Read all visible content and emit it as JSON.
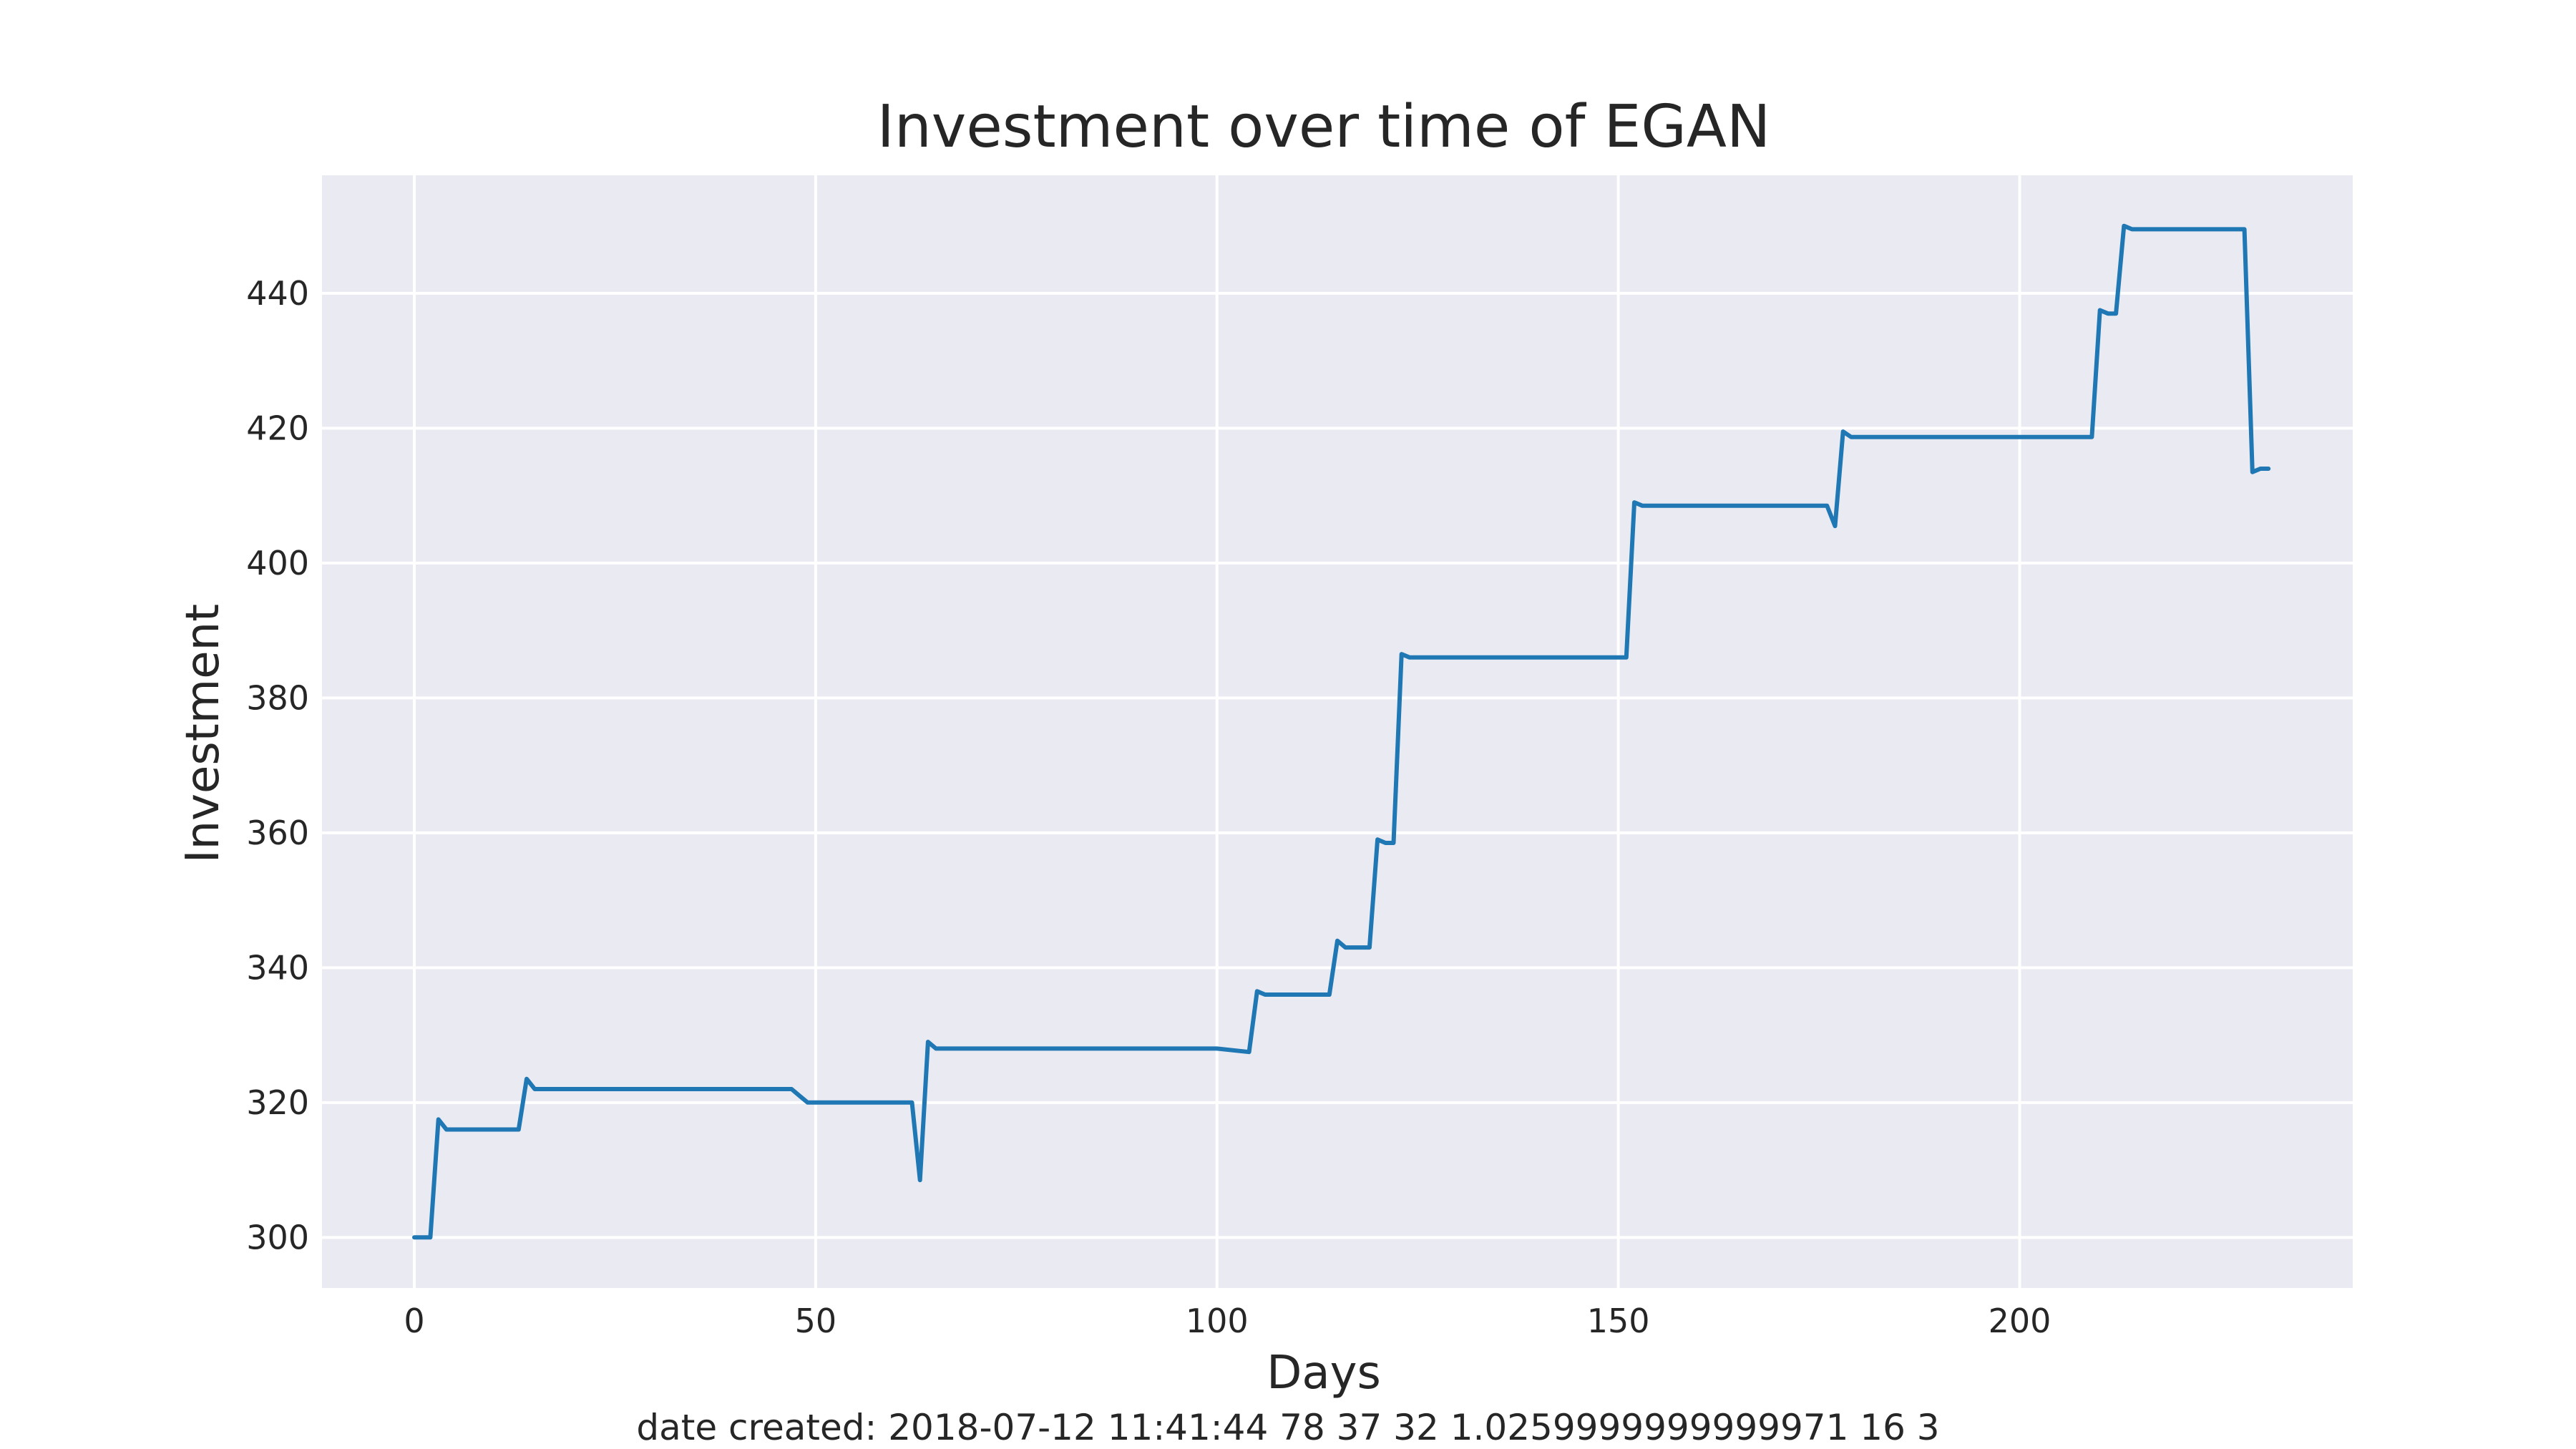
{
  "chart_data": {
    "type": "line",
    "title": "Investment over time of EGAN",
    "xlabel": "Days",
    "ylabel": "Investment",
    "caption": "date created: 2018-07-12 11:41:44 78 37 32 1.0259999999999971 16 3",
    "xlim": [
      -11.5,
      241.5
    ],
    "ylim": [
      292.5,
      457.5
    ],
    "x_ticks": [
      0,
      50,
      100,
      150,
      200
    ],
    "y_ticks": [
      300,
      320,
      340,
      360,
      380,
      400,
      420,
      440
    ],
    "grid": true,
    "legend": "none",
    "colors": {
      "plot_background": "#eaeaf2",
      "grid": "#ffffff",
      "line": "#1f77b4",
      "text": "#262626"
    },
    "series": [
      {
        "x": [
          0,
          1,
          2,
          3,
          4,
          5,
          6,
          7,
          8,
          9,
          10,
          11,
          12,
          13,
          14,
          15,
          16,
          20,
          25,
          30,
          35,
          40,
          45,
          47,
          48,
          49,
          50,
          55,
          60,
          62,
          63,
          64,
          65,
          70,
          80,
          90,
          100,
          104,
          105,
          106,
          110,
          114,
          115,
          116,
          119,
          120,
          121,
          122,
          123,
          124,
          130,
          140,
          150,
          151,
          152,
          153,
          160,
          170,
          176,
          177,
          178,
          179,
          190,
          200,
          209,
          210,
          211,
          212,
          213,
          214,
          220,
          228,
          229,
          230,
          231
        ],
        "y": [
          300,
          300,
          300,
          317.5,
          316,
          316,
          316,
          316,
          316,
          316,
          316,
          316,
          316,
          316,
          323.5,
          322,
          322,
          322,
          322,
          322,
          322,
          322,
          322,
          322,
          321,
          320,
          320,
          320,
          320,
          320,
          308.5,
          329,
          328,
          328,
          328,
          328,
          328,
          327.5,
          336.5,
          336,
          336,
          336,
          344,
          343,
          343,
          359,
          358.5,
          358.5,
          386.5,
          386,
          386,
          386,
          386,
          386,
          409,
          408.5,
          408.5,
          408.5,
          408.5,
          405.5,
          419.5,
          418.7,
          418.7,
          418.7,
          418.7,
          437.5,
          437,
          437,
          450,
          449.5,
          449.5,
          449.5,
          413.5,
          414,
          414
        ]
      }
    ]
  }
}
